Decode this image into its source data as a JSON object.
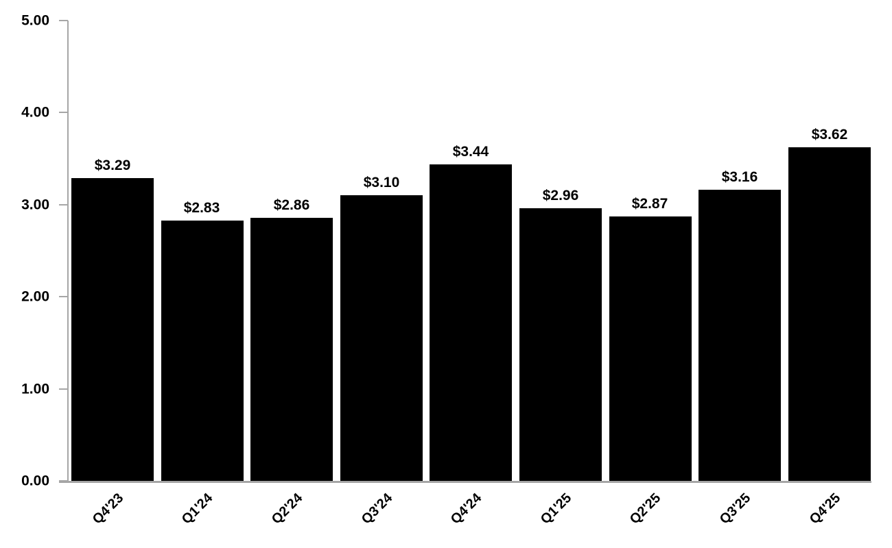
{
  "chart_data": {
    "type": "bar",
    "title": "",
    "xlabel": "",
    "ylabel": "",
    "categories": [
      "Q4'23",
      "Q1'24",
      "Q2'24",
      "Q3'24",
      "Q4'24",
      "Q1'25",
      "Q2'25",
      "Q3'25",
      "Q4'25"
    ],
    "values": [
      3.29,
      2.83,
      2.86,
      3.1,
      3.44,
      2.96,
      2.87,
      3.16,
      3.62
    ],
    "data_labels": [
      "$3.29",
      "$2.83",
      "$2.86",
      "$3.10",
      "$3.44",
      "$2.96",
      "$2.87",
      "$3.16",
      "$3.62"
    ],
    "ylim": [
      0,
      5
    ],
    "y_tick_step": 1,
    "y_tick_labels": [
      "0.00",
      "1.00",
      "2.00",
      "3.00",
      "4.00",
      "5.00"
    ],
    "grid": false,
    "legend": false,
    "bar_color": "#000000",
    "axis_color": "#A6A6A6",
    "text_color": "#000000",
    "background_color": "#FFFFFF"
  }
}
